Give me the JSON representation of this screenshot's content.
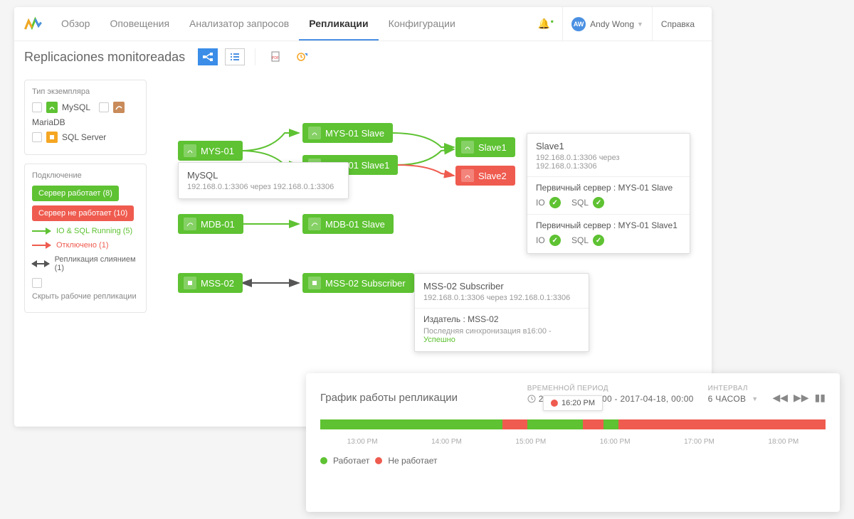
{
  "nav": {
    "items": [
      "Обзор",
      "Оповещения",
      "Анализатор запросов",
      "Репликации",
      "Конфигурации"
    ],
    "active": 3
  },
  "user": {
    "initials": "AW",
    "name": "Andy Wong"
  },
  "help": "Справка",
  "pageTitle": "Replicaciones monitoreadas",
  "sidebar": {
    "instanceTypeTitle": "Тип экземпляра",
    "types": [
      "MySQL",
      "MariaDB",
      "SQL Server"
    ],
    "connTitle": "Подключение",
    "serverUp": "Сервер работает  (8)",
    "serverDown": "Сервер не работает  (10)",
    "ioSql": "IO & SQL Running (5)",
    "disconnected": "Отключено (1)",
    "mergeRepl": "Репликация слиянием (1)",
    "hideWorking": "Скрыть рабочие репликации"
  },
  "nodes": {
    "mys01": "MYS-01",
    "mys01slave": "MYS-01 Slave",
    "mys01slave1": "MYS-01 Slave1",
    "slave1": "Slave1",
    "slave2": "Slave2",
    "mdb01": "MDB-01",
    "mdb01slave": "MDB-01 Slave",
    "mss02": "MSS-02",
    "mss02sub": "MSS-02 Subscriber"
  },
  "tt1": {
    "title": "MySQL",
    "sub": "192.168.0.1:3306 через 192.168.0.1:3306"
  },
  "tt2": {
    "title": "Slave1",
    "sub": "192.168.0.1:3306 через 192.168.0.1:3306",
    "m1": "Первичный сервер : MYS-01 Slave",
    "io": "IO",
    "sql": "SQL",
    "m2": "Первичный сервер : MYS-01 Slave1"
  },
  "tt3": {
    "title": "MSS-02 Subscriber",
    "sub": "192.168.0.1:3306 через 192.168.0.1:3306",
    "pub": "Издатель : MSS-02",
    "sync": "Последняя синхронизация в16:00 - ",
    "ok": "Успешно"
  },
  "timeline": {
    "title": "График работы репликации",
    "periodLbl": "ВРЕМЕННОЙ ПЕРИОД",
    "period": "2017-04-17, 00:00 - 2017-04-18, 00:00",
    "intervalLbl": "ИНТЕРВАЛ",
    "interval": "6 ЧАСОВ",
    "marker": "16:20 PM",
    "ticks": [
      "13:00 PM",
      "14:00 PM",
      "15:00 PM",
      "16:00 PM",
      "17:00 PM",
      "18:00 PM"
    ],
    "segs": [
      {
        "c": "g",
        "w": 36
      },
      {
        "c": "r",
        "w": 5
      },
      {
        "c": "g",
        "w": 11
      },
      {
        "c": "r",
        "w": 4
      },
      {
        "c": "g",
        "w": 3
      },
      {
        "c": "r",
        "w": 41
      }
    ],
    "legOk": "Работает",
    "legDown": "Не работает"
  },
  "colors": {
    "green": "#5ec232",
    "red": "#ef5b4f",
    "orange": "#f5a623",
    "blue": "#3b8de8"
  }
}
